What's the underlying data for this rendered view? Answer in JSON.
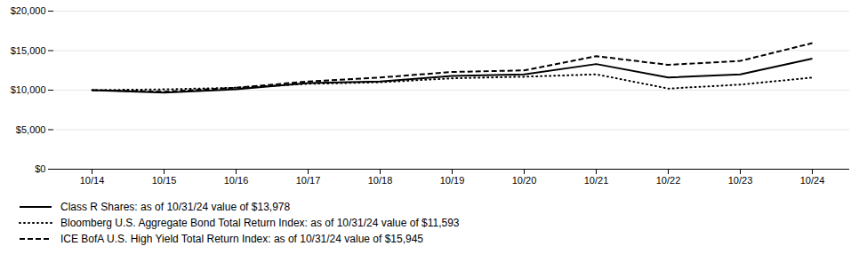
{
  "chart_data": {
    "type": "line",
    "categories": [
      "10/14",
      "10/15",
      "10/16",
      "10/17",
      "10/18",
      "10/19",
      "10/20",
      "10/21",
      "10/22",
      "10/23",
      "10/24"
    ],
    "series": [
      {
        "name": "Class R Shares: as of 10/31/24 value of $13,978",
        "color": "#000000",
        "line_style": "solid",
        "values": [
          10000,
          9700,
          10100,
          10900,
          11100,
          11800,
          12000,
          13300,
          11600,
          12000,
          13978
        ]
      },
      {
        "name": "Bloomberg U.S. Aggregate Bond Total Return Index: as of 10/31/24 value of $11,593",
        "color": "#000000",
        "line_style": "dotted",
        "values": [
          10000,
          10100,
          10300,
          10800,
          11000,
          11500,
          11700,
          12000,
          10200,
          10700,
          11593
        ]
      },
      {
        "name": "ICE BofA U.S. High Yield Total Return Index: as of 10/31/24 value of $15,945",
        "color": "#000000",
        "line_style": "dashed",
        "values": [
          10000,
          9800,
          10300,
          11100,
          11600,
          12300,
          12500,
          14300,
          13200,
          13700,
          15945
        ]
      }
    ],
    "ylim": [
      0,
      20000
    ],
    "yticks": [
      {
        "value": 0,
        "label": "$0"
      },
      {
        "value": 5000,
        "label": "$5,000"
      },
      {
        "value": 10000,
        "label": "$10,000"
      },
      {
        "value": 15000,
        "label": "$15,000"
      },
      {
        "value": 20000,
        "label": "$20,000"
      }
    ],
    "grid": true,
    "legend": "bottom"
  }
}
